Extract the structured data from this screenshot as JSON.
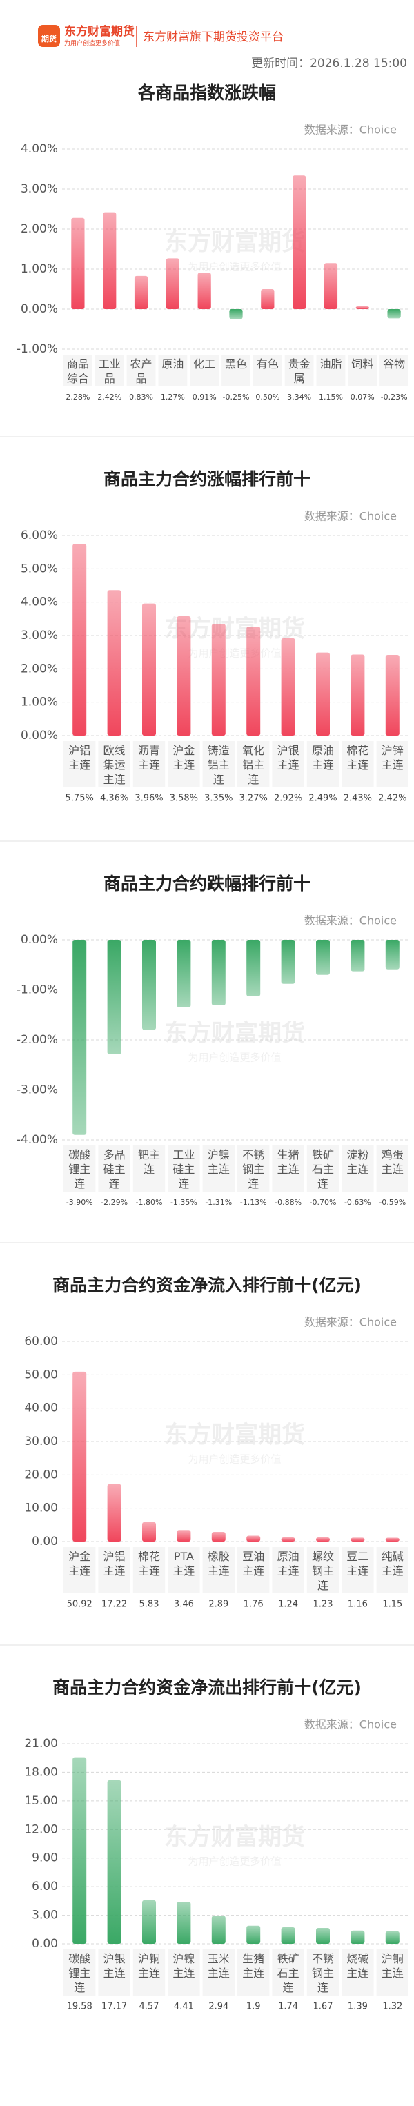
{
  "header": {
    "logo_text": "期货",
    "brand": "东方财富期货",
    "slogan": "为用户创造更多价值",
    "platform": "东方财富旗下期货投资平台",
    "update_time": "更新时间：2026.1.28 15:00"
  },
  "watermark": {
    "brand": "东方财富期货",
    "slogan": "为用户创造更多价值"
  },
  "chart_data": [
    {
      "type": "bar",
      "title": "各商品指数涨跌幅",
      "source": "数据来源：Choice",
      "categories": [
        "商品综合",
        "工业品",
        "农产品",
        "原油",
        "化工",
        "黑色",
        "有色",
        "贵金属",
        "油脂",
        "饲料",
        "谷物"
      ],
      "values": [
        2.28,
        2.42,
        0.83,
        1.27,
        0.91,
        -0.25,
        0.5,
        3.34,
        1.15,
        0.07,
        -0.23
      ],
      "value_labels": [
        "2.28%",
        "2.42%",
        "0.83%",
        "1.27%",
        "0.91%",
        "-0.25%",
        "0.50%",
        "3.34%",
        "1.15%",
        "0.07%",
        "-0.23%"
      ],
      "color": "#f0465c",
      "negative_color": "#3aa865",
      "ylim": [
        -1,
        4
      ],
      "yticks": [
        {
          "value": 4,
          "label": "4.00%"
        },
        {
          "value": 3,
          "label": "3.00%"
        },
        {
          "value": 2,
          "label": "2.00%"
        },
        {
          "value": 1,
          "label": "1.00%"
        },
        {
          "value": 0,
          "label": "0.00%"
        },
        {
          "value": -1,
          "label": "-1.00%"
        }
      ],
      "grid": true
    },
    {
      "type": "bar",
      "title": "商品主力合约涨幅排行前十",
      "source": "数据来源：Choice",
      "categories": [
        "沪铝主连",
        "欧线集运主连",
        "沥青主连",
        "沪金主连",
        "铸造铝主连",
        "氧化铝主连",
        "沪银主连",
        "原油主连",
        "棉花主连",
        "沪锌主连"
      ],
      "values": [
        5.75,
        4.36,
        3.96,
        3.58,
        3.35,
        3.27,
        2.92,
        2.49,
        2.43,
        2.42
      ],
      "value_labels": [
        "5.75%",
        "4.36%",
        "3.96%",
        "3.58%",
        "3.35%",
        "3.27%",
        "2.92%",
        "2.49%",
        "2.43%",
        "2.42%"
      ],
      "color": "#f0465c",
      "ylim": [
        0,
        6
      ],
      "yticks": [
        {
          "value": 6,
          "label": "6.00%"
        },
        {
          "value": 5,
          "label": "5.00%"
        },
        {
          "value": 4,
          "label": "4.00%"
        },
        {
          "value": 3,
          "label": "3.00%"
        },
        {
          "value": 2,
          "label": "2.00%"
        },
        {
          "value": 1,
          "label": "1.00%"
        },
        {
          "value": 0,
          "label": "0.00%"
        }
      ],
      "grid": true
    },
    {
      "type": "bar",
      "title": "商品主力合约跌幅排行前十",
      "source": "数据来源：Choice",
      "categories": [
        "碳酸锂主连",
        "多晶硅主连",
        "钯主连",
        "工业硅主连",
        "沪镍主连",
        "不锈钢主连",
        "生猪主连",
        "铁矿石主连",
        "淀粉主连",
        "鸡蛋主连"
      ],
      "values": [
        -3.9,
        -2.29,
        -1.8,
        -1.35,
        -1.31,
        -1.13,
        -0.88,
        -0.7,
        -0.63,
        -0.59
      ],
      "value_labels": [
        "-3.90%",
        "-2.29%",
        "-1.80%",
        "-1.35%",
        "-1.31%",
        "-1.13%",
        "-0.88%",
        "-0.70%",
        "-0.63%",
        "-0.59%"
      ],
      "color": "#3aa865",
      "ylim": [
        -4,
        0
      ],
      "yticks": [
        {
          "value": 0,
          "label": "0.00%"
        },
        {
          "value": -1,
          "label": "-1.00%"
        },
        {
          "value": -2,
          "label": "-2.00%"
        },
        {
          "value": -3,
          "label": "-3.00%"
        },
        {
          "value": -4,
          "label": "-4.00%"
        }
      ],
      "grid": true
    },
    {
      "type": "bar",
      "title": "商品主力合约资金净流入排行前十(亿元)",
      "source": "数据来源：Choice",
      "categories": [
        "沪金主连",
        "沪铝主连",
        "棉花主连",
        "PTA主连",
        "橡胶主连",
        "豆油主连",
        "原油主连",
        "螺纹钢主连",
        "豆二主连",
        "纯碱主连"
      ],
      "values": [
        50.92,
        17.22,
        5.83,
        3.46,
        2.89,
        1.76,
        1.24,
        1.23,
        1.16,
        1.15
      ],
      "color": "#f0465c",
      "ylim": [
        0,
        60
      ],
      "yticks": [
        {
          "value": 60,
          "label": "60.00"
        },
        {
          "value": 50,
          "label": "50.00"
        },
        {
          "value": 40,
          "label": "40.00"
        },
        {
          "value": 30,
          "label": "30.00"
        },
        {
          "value": 20,
          "label": "20.00"
        },
        {
          "value": 10,
          "label": "10.00"
        },
        {
          "value": 0,
          "label": "0.00"
        }
      ],
      "grid": true
    },
    {
      "type": "bar",
      "title": "商品主力合约资金净流出排行前十(亿元)",
      "source": "数据来源：Choice",
      "categories": [
        "碳酸锂主连",
        "沪银主连",
        "沪铜主连",
        "沪镍主连",
        "玉米主连",
        "生猪主连",
        "铁矿石主连",
        "不锈钢主连",
        "烧碱主连",
        "沪铜主连"
      ],
      "values": [
        19.58,
        17.17,
        4.57,
        4.41,
        2.94,
        1.9,
        1.74,
        1.67,
        1.39,
        1.32
      ],
      "color": "#3aa865",
      "ylim": [
        0,
        21
      ],
      "yticks": [
        {
          "value": 21,
          "label": "21.00"
        },
        {
          "value": 18,
          "label": "18.00"
        },
        {
          "value": 15,
          "label": "15.00"
        },
        {
          "value": 12,
          "label": "12.00"
        },
        {
          "value": 9,
          "label": "9.00"
        },
        {
          "value": 6,
          "label": "6.00"
        },
        {
          "value": 3,
          "label": "3.00"
        },
        {
          "value": 0,
          "label": "0.00"
        }
      ],
      "grid": true
    }
  ]
}
